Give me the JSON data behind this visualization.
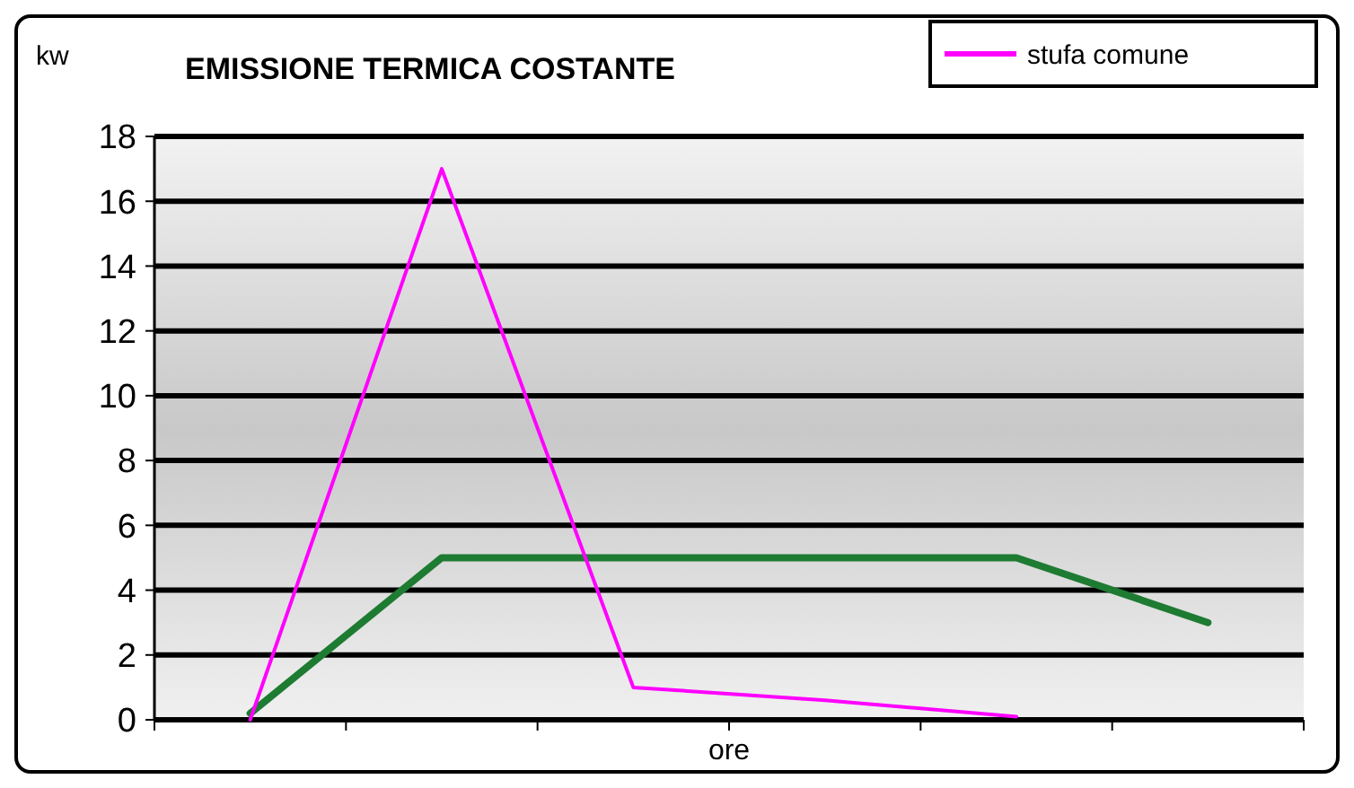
{
  "chart_data": {
    "type": "line",
    "title": "EMISSIONE TERMICA COSTANTE",
    "ylabel": "kw",
    "xlabel": "ore",
    "categories": [
      null,
      null,
      null,
      null,
      null,
      null
    ],
    "ylim": [
      0,
      18
    ],
    "yticks": [
      0,
      2,
      4,
      6,
      8,
      10,
      12,
      14,
      16,
      18
    ],
    "grid": "y",
    "legend": "top right",
    "line_style": "solid",
    "series": [
      {
        "color": "#1e7b32",
        "values": [
          0.2,
          5,
          5,
          5,
          5,
          3
        ]
      },
      {
        "name": "stufa comune",
        "color": "#ff00ff",
        "values": [
          0,
          17,
          1,
          0.6,
          0.1,
          null
        ]
      }
    ]
  }
}
